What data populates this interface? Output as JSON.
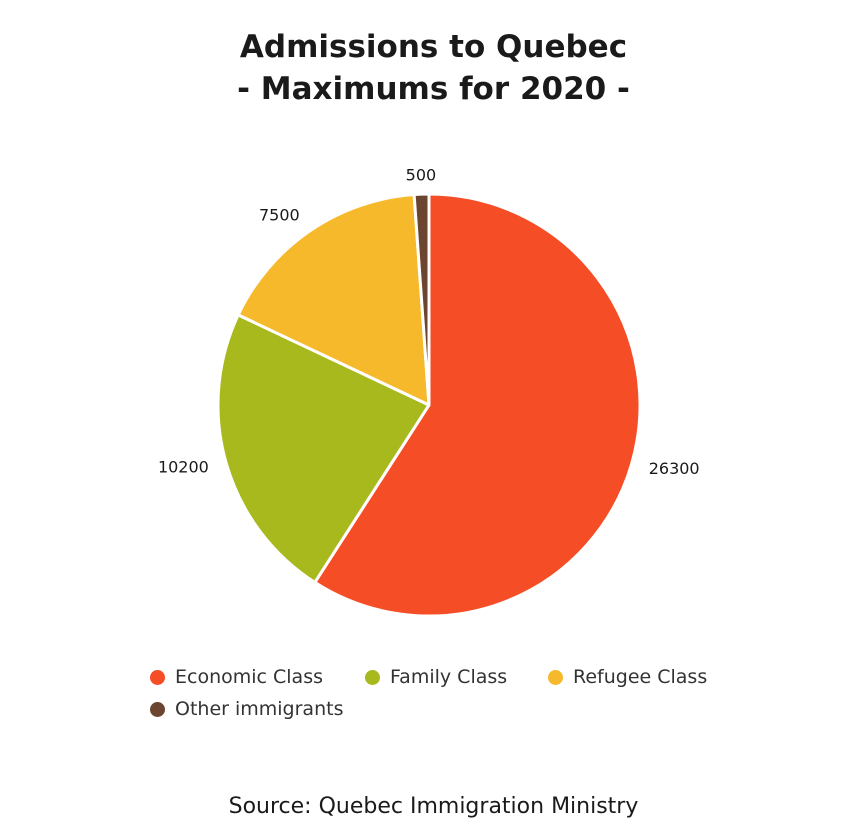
{
  "chart_data": {
    "type": "pie",
    "title_line1": "Admissions to Quebec",
    "title_line2": "- Maximums for 2020 -",
    "slices": [
      {
        "name": "Economic Class",
        "value": 26300,
        "label": "26300",
        "color": "#f54e27"
      },
      {
        "name": "Family Class",
        "value": 10200,
        "label": "10200",
        "color": "#a8b91d"
      },
      {
        "name": "Refugee Class",
        "value": 7500,
        "label": "7500",
        "color": "#f5b92b"
      },
      {
        "name": "Other immigrants",
        "value": 500,
        "label": "500",
        "color": "#6b4530"
      }
    ],
    "legend_placement": "bottom",
    "source": "Source: Quebec Immigration Ministry"
  }
}
